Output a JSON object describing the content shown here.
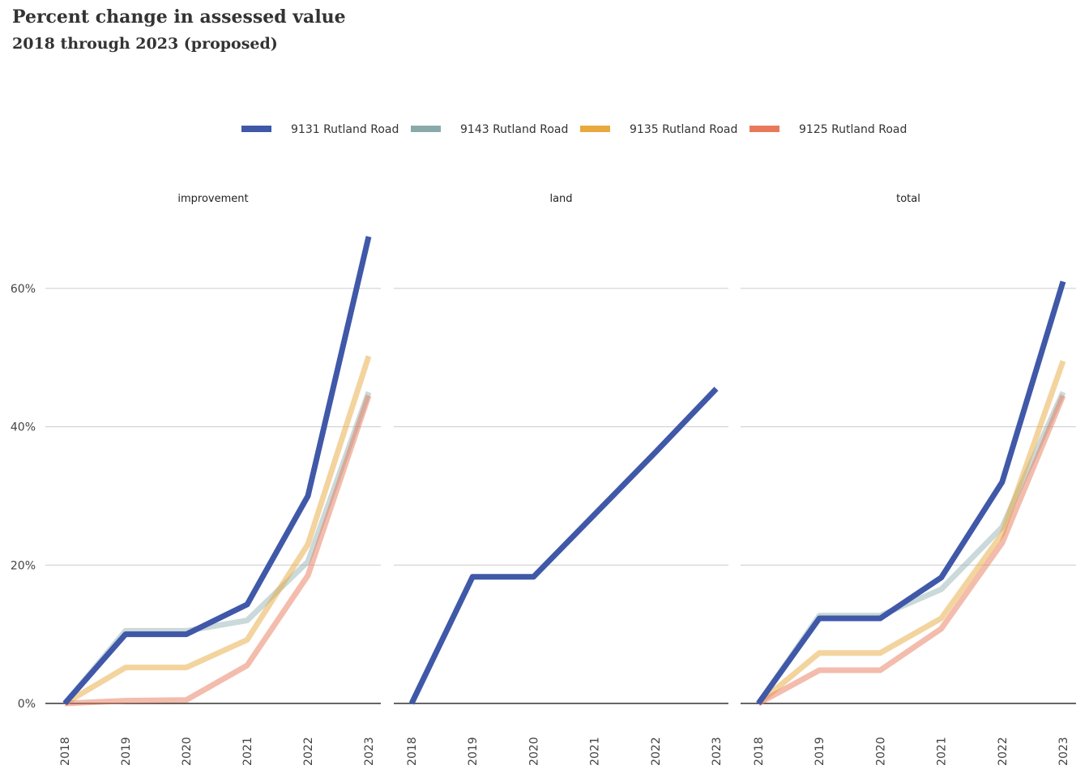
{
  "title": "Percent change in assessed value",
  "subtitle": "2018 through 2023 (proposed)",
  "chart_data": {
    "type": "line",
    "x": [
      "2018",
      "2019",
      "2020",
      "2021",
      "2022",
      "2023"
    ],
    "y_ticks": [
      "0%",
      "20%",
      "40%",
      "60%"
    ],
    "ylim": [
      0,
      68
    ],
    "grid": true,
    "legend_position": "top",
    "series_info": [
      {
        "name": "9131 Rutland Road",
        "color": "#4058a8"
      },
      {
        "name": "9143 Rutland Road",
        "color": "#8aaaaa"
      },
      {
        "name": "9135 Rutland Road",
        "color": "#e8a93e"
      },
      {
        "name": "9125 Rutland Road",
        "color": "#e8795a"
      }
    ],
    "facets": [
      {
        "label": "improvement",
        "series": [
          {
            "name": "9143 Rutland Road",
            "values": [
              0,
              10.5,
              10.5,
              12,
              20.5,
              45
            ]
          },
          {
            "name": "9135 Rutland Road",
            "values": [
              0,
              5.2,
              5.2,
              9.2,
              23,
              50.2
            ]
          },
          {
            "name": "9125 Rutland Road",
            "values": [
              0,
              0.4,
              0.5,
              5.5,
              18.5,
              44.5
            ]
          },
          {
            "name": "9131 Rutland Road",
            "values": [
              0,
              10,
              10,
              14.3,
              30,
              67.5
            ]
          }
        ]
      },
      {
        "label": "land",
        "series": [
          {
            "name": "9131 Rutland Road",
            "values": [
              0,
              18.3,
              18.3,
              27.3,
              36.3,
              45.5
            ]
          }
        ]
      },
      {
        "label": "total",
        "series": [
          {
            "name": "9143 Rutland Road",
            "values": [
              0,
              12.7,
              12.7,
              16.5,
              25.5,
              45
            ]
          },
          {
            "name": "9135 Rutland Road",
            "values": [
              0,
              7.3,
              7.3,
              12.3,
              24.5,
              49.5
            ]
          },
          {
            "name": "9125 Rutland Road",
            "values": [
              0,
              4.8,
              4.8,
              10.8,
              23.2,
              44.5
            ]
          },
          {
            "name": "9131 Rutland Road",
            "values": [
              0,
              12.3,
              12.3,
              18.2,
              32,
              61
            ]
          }
        ]
      }
    ]
  }
}
